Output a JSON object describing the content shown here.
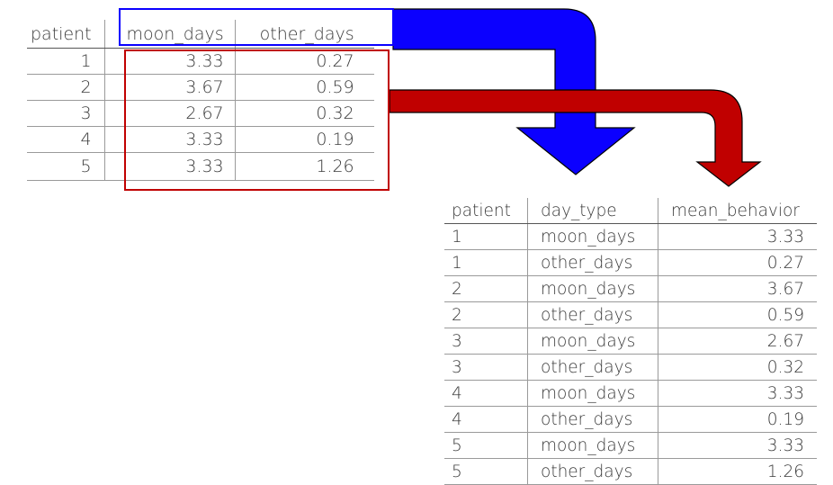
{
  "wide_table": {
    "headers": [
      "patient",
      "moon_days",
      "other_days"
    ],
    "rows": [
      [
        "1",
        "3.33",
        "0.27"
      ],
      [
        "2",
        "3.67",
        "0.59"
      ],
      [
        "3",
        "2.67",
        "0.32"
      ],
      [
        "4",
        "3.33",
        "0.19"
      ],
      [
        "5",
        "3.33",
        "1.26"
      ]
    ]
  },
  "long_table": {
    "headers": [
      "patient",
      "day_type",
      "mean_behavior"
    ],
    "rows": [
      [
        "1",
        "moon_days",
        "3.33"
      ],
      [
        "1",
        "other_days",
        "0.27"
      ],
      [
        "2",
        "moon_days",
        "3.67"
      ],
      [
        "2",
        "other_days",
        "0.59"
      ],
      [
        "3",
        "moon_days",
        "2.67"
      ],
      [
        "3",
        "other_days",
        "0.32"
      ],
      [
        "4",
        "moon_days",
        "3.33"
      ],
      [
        "4",
        "other_days",
        "0.19"
      ],
      [
        "5",
        "moon_days",
        "3.33"
      ],
      [
        "5",
        "other_days",
        "1.26"
      ]
    ]
  },
  "colors": {
    "names_arrow": "#0b00ff",
    "values_arrow": "#c00000",
    "arrow_outline": "#000000"
  }
}
